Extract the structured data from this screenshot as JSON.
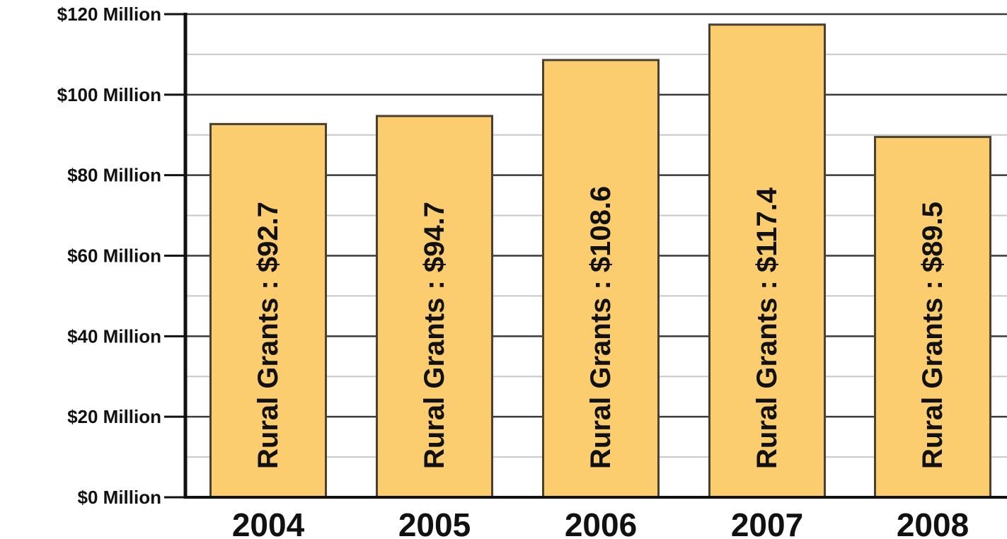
{
  "chart_data": {
    "type": "bar",
    "categories": [
      "2004",
      "2005",
      "2006",
      "2007",
      "2008"
    ],
    "values": [
      92.7,
      94.7,
      108.6,
      117.4,
      89.5
    ],
    "bar_labels": [
      "Rural Grants : $92.7",
      "Rural Grants : $94.7",
      "Rural Grants : $108.6",
      "Rural Grants : $117.4",
      "Rural Grants : $89.5"
    ],
    "y_tick_values": [
      0,
      20,
      40,
      60,
      80,
      100,
      120
    ],
    "y_tick_labels": [
      "$0 Million",
      "$20 Million",
      "$40 Million",
      "$60 Million",
      "$80 Million",
      "$100 Million",
      "$120 Million"
    ],
    "ylim": [
      0,
      120
    ],
    "minor_gridline_step": 10,
    "grid": true,
    "legend": false,
    "title": "",
    "xlabel": "",
    "ylabel": "",
    "colors": {
      "bar_fill": "#FBCD6E",
      "bar_stroke": "#4A4030",
      "major_grid": "#3a3a3a",
      "minor_grid": "#c8c8c8",
      "axis": "#111111"
    }
  }
}
